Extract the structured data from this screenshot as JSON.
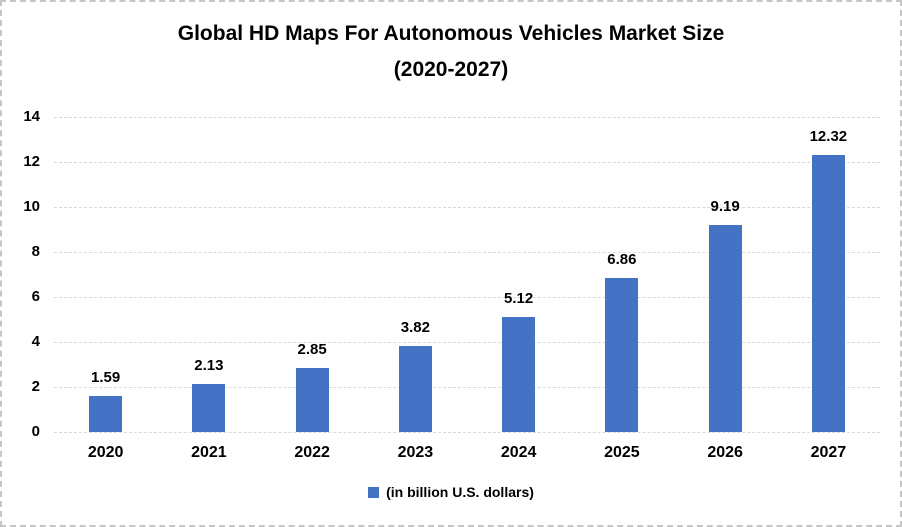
{
  "chart_data": {
    "type": "bar",
    "title": "Global HD Maps For Autonomous Vehicles Market Size",
    "subtitle": "(2020-2027)",
    "categories": [
      "2020",
      "2021",
      "2022",
      "2023",
      "2024",
      "2025",
      "2026",
      "2027"
    ],
    "values": [
      1.59,
      2.13,
      2.85,
      3.82,
      5.12,
      6.86,
      9.19,
      12.32
    ],
    "value_labels": [
      "1.59",
      "2.13",
      "2.85",
      "3.82",
      "5.12",
      "6.86",
      "9.19",
      "12.32"
    ],
    "ylim": [
      0,
      14
    ],
    "ytick_step": 2,
    "ytick_labels": [
      "0",
      "2",
      "4",
      "6",
      "8",
      "10",
      "12",
      "14"
    ],
    "grid": true,
    "legend_position": "bottom",
    "legend_label": "(in billion U.S. dollars)",
    "bar_color": "#4472C4",
    "gridline_color": "#D9D9D9",
    "text_color": "#000000"
  }
}
